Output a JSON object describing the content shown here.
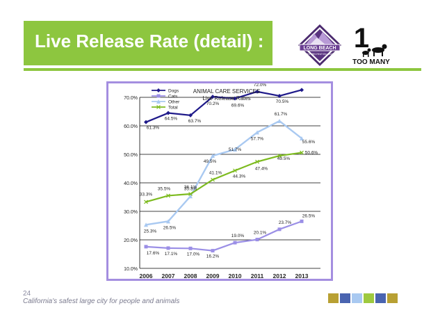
{
  "slide": {
    "title": "Live Release Rate (detail) :",
    "page_number": "24",
    "footer": "California's safest large city for people and animals"
  },
  "logos": {
    "long_beach_text": "LONG BEACH",
    "long_beach_sub": "PARKS • RECREATION • MARINE",
    "too_many_digit": "1",
    "too_many_text": "TOO MANY"
  },
  "colors": {
    "green": "#8dc63f",
    "frame": "#a48ee0",
    "dogs": "#1f1a8a",
    "cats": "#9b8fe6",
    "other": "#a9c9f1",
    "total": "#7dbb1f",
    "swatches": [
      "#b8a033",
      "#4a64b0",
      "#a9c9f1",
      "#9ec93f",
      "#4a64b0",
      "#b8a033"
    ]
  },
  "chart_data": {
    "type": "line",
    "title": "ANIMAL CARE SERVICES",
    "subtitle": "Live Release Rates",
    "x": [
      "2006",
      "2007",
      "2008",
      "2009",
      "2010",
      "2011",
      "2012",
      "2013"
    ],
    "ylim": [
      10,
      70
    ],
    "yticks": [
      "10.0%",
      "20.0%",
      "30.0%",
      "40.0%",
      "50.0%",
      "60.0%",
      "70.0%"
    ],
    "grid": true,
    "legend": "top-left",
    "series": [
      {
        "name": "Dogs",
        "values": [
          61.3,
          64.5,
          63.7,
          70.2,
          69.6,
          72.0,
          70.5,
          72.6
        ],
        "labels": [
          "61.3%",
          "64.5%",
          "63.7%",
          "70.2%",
          "69.6%",
          "72.0%",
          "70.5%",
          "72.6%"
        ]
      },
      {
        "name": "Cats",
        "values": [
          17.6,
          17.1,
          17.0,
          16.2,
          19.0,
          20.1,
          23.7,
          26.5
        ],
        "labels": [
          "17.6%",
          "17.1%",
          "17.0%",
          "16.2%",
          "19.0%",
          "20.1%",
          "23.7%",
          "26.5%"
        ]
      },
      {
        "name": "Other",
        "values": [
          25.3,
          26.5,
          35.3,
          49.5,
          51.7,
          57.7,
          61.7,
          55.6
        ],
        "labels": [
          "25.3%",
          "26.5%",
          "35.3%",
          "49.5%",
          "51.7%",
          "57.7%",
          "61.7%",
          "55.6%"
        ]
      },
      {
        "name": "Total",
        "values": [
          33.3,
          35.5,
          36.1,
          41.1,
          44.3,
          47.4,
          49.5,
          50.6
        ],
        "labels": [
          "33.3%",
          "35.5%",
          "36.1%",
          "41.1%",
          "44.3%",
          "47.4%",
          "49.5%",
          "50.6%"
        ]
      }
    ]
  }
}
